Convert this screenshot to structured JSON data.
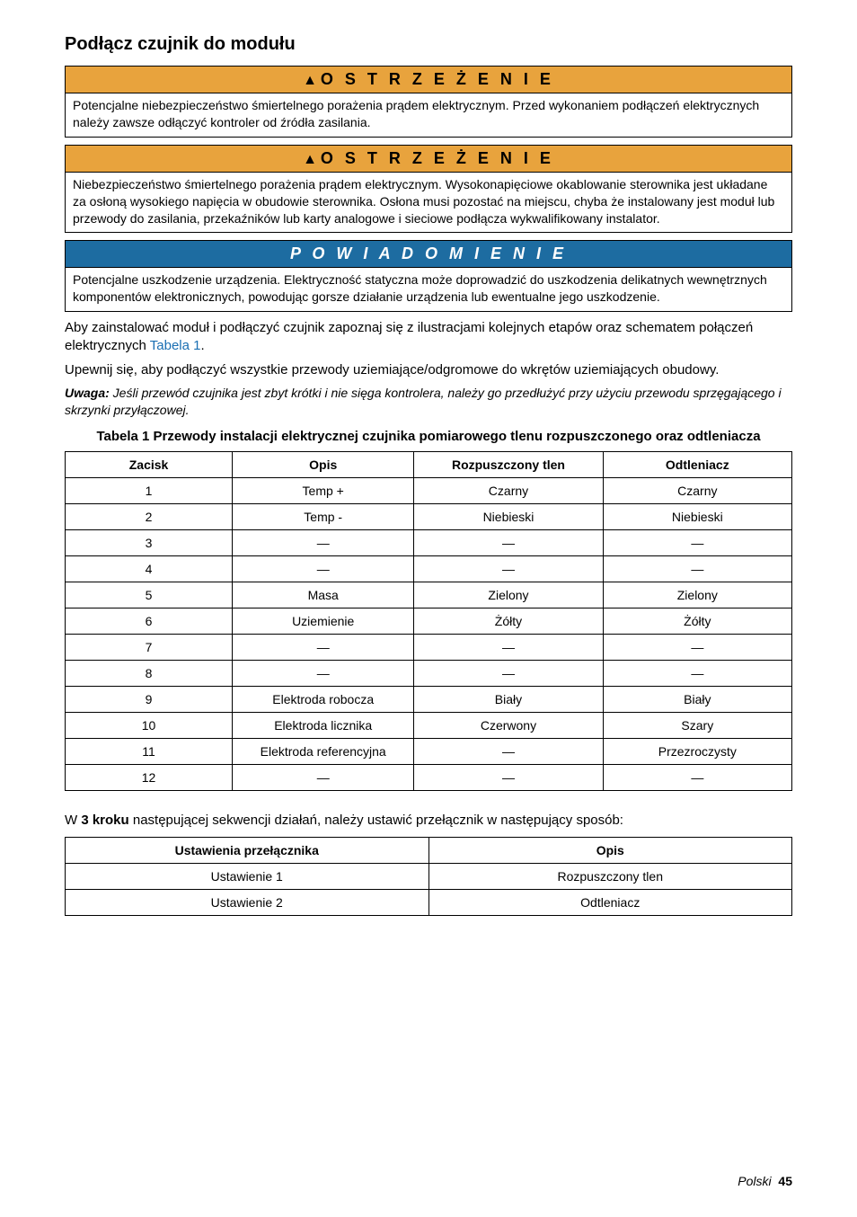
{
  "section_heading": "Podłącz czujnik do modułu",
  "warning1": {
    "header": "O S T R Z E Ż E N I E",
    "bg_color": "#e8a33d",
    "text_color": "#000000",
    "body": "Potencjalne niebezpieczeństwo śmiertelnego porażenia prądem elektrycznym. Przed wykonaniem podłączeń elektrycznych należy zawsze odłączyć kontroler od źródła zasilania."
  },
  "warning2": {
    "header": "O S T R Z E Ż E N I E",
    "bg_color": "#e8a33d",
    "text_color": "#000000",
    "body": "Niebezpieczeństwo śmiertelnego porażenia prądem elektrycznym. Wysokonapięciowe okablowanie sterownika jest układane za osłoną wysokiego napięcia w obudowie sterownika. Osłona musi pozostać na miejscu, chyba że instalowany jest moduł lub przewody do zasilania, przekaźników lub karty analogowe i sieciowe podłącza wykwalifikowany instalator."
  },
  "notice": {
    "header": "P O W I A D O M I E N I E",
    "bg_color": "#1d6ca1",
    "text_color": "#ffffff",
    "body": "Potencjalne uszkodzenie urządzenia. Elektryczność statyczna może doprowadzić do uszkodzenia delikatnych wewnętrznych komponentów elektronicznych, powodując gorsze działanie urządzenia lub ewentualne jego uszkodzenie."
  },
  "para1_a": "Aby zainstalować moduł i podłączyć czujnik zapoznaj się z ilustracjami kolejnych etapów oraz schematem połączeń elektrycznych ",
  "para1_link": "Tabela 1",
  "para1_b": ".",
  "para2": "Upewnij się, aby podłączyć wszystkie przewody uziemiające/odgromowe do wkrętów uziemiających obudowy.",
  "note_label": "Uwaga:",
  "note_body": " Jeśli przewód czujnika jest zbyt krótki i nie sięga kontrolera, należy go przedłużyć przy użyciu przewodu sprzęgającego i skrzynki przyłączowej.",
  "table1": {
    "caption": "Tabela 1  Przewody instalacji elektrycznej czujnika pomiarowego tlenu rozpuszczonego oraz odtleniacza",
    "headers": [
      "Zacisk",
      "Opis",
      "Rozpuszczony tlen",
      "Odtleniacz"
    ],
    "col_widths": [
      "23%",
      "25%",
      "26%",
      "26%"
    ],
    "rows": [
      [
        "1",
        "Temp +",
        "Czarny",
        "Czarny"
      ],
      [
        "2",
        "Temp -",
        "Niebieski",
        "Niebieski"
      ],
      [
        "3",
        "—",
        "—",
        "—"
      ],
      [
        "4",
        "—",
        "—",
        "—"
      ],
      [
        "5",
        "Masa",
        "Zielony",
        "Zielony"
      ],
      [
        "6",
        "Uziemienie",
        "Żółty",
        "Żółty"
      ],
      [
        "7",
        "—",
        "—",
        "—"
      ],
      [
        "8",
        "—",
        "—",
        "—"
      ],
      [
        "9",
        "Elektroda robocza",
        "Biały",
        "Biały"
      ],
      [
        "10",
        "Elektroda licznika",
        "Czerwony",
        "Szary"
      ],
      [
        "11",
        "Elektroda referencyjna",
        "—",
        "Przezroczysty"
      ],
      [
        "12",
        "—",
        "—",
        "—"
      ]
    ]
  },
  "step_a": "W ",
  "step_bold": "3 kroku",
  "step_b": " następującej sekwencji działań, należy ustawić przełącznik w następujący sposób:",
  "table2": {
    "headers": [
      "Ustawienia przełącznika",
      "Opis"
    ],
    "col_widths": [
      "50%",
      "50%"
    ],
    "rows": [
      [
        "Ustawienie 1",
        "Rozpuszczony tlen"
      ],
      [
        "Ustawienie 2",
        "Odtleniacz"
      ]
    ]
  },
  "footer_lang": "Polski",
  "footer_page": "45"
}
